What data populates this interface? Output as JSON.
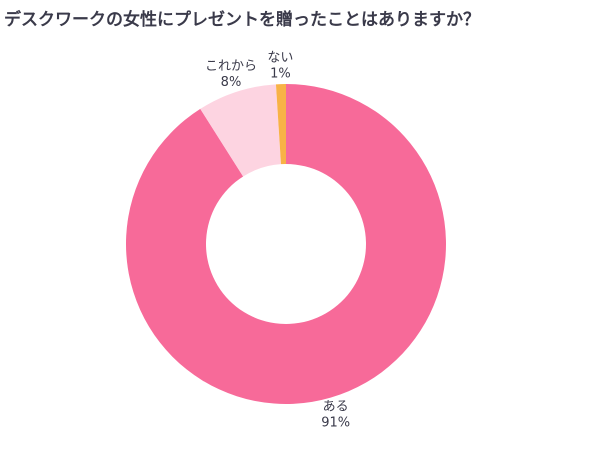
{
  "chart_data": {
    "type": "donut",
    "title": "デスクワークの女性にプレゼントを贈ったことはありますか？",
    "categories": [
      "ある",
      "これから",
      "ない"
    ],
    "values": [
      91,
      8,
      1
    ],
    "value_labels": [
      "91%",
      "8%",
      "1%"
    ],
    "colors": [
      "#f76a99",
      "#fdd4e1",
      "#f8b246"
    ]
  }
}
